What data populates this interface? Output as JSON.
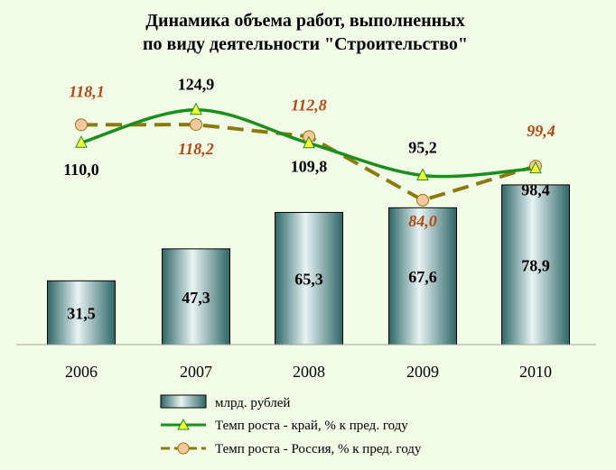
{
  "chart_data": {
    "type": "bar",
    "title_lines": [
      "Динамика объема работ, выполненных",
      "по виду деятельности \"Строительство\""
    ],
    "categories": [
      "2006",
      "2007",
      "2008",
      "2009",
      "2010"
    ],
    "bars": {
      "name": "млрд. рублей",
      "values": [
        31.5,
        47.3,
        65.3,
        67.6,
        78.9
      ],
      "labels": [
        "31,5",
        "47,3",
        "65,3",
        "67,6",
        "78,9"
      ],
      "ylim": [
        0,
        100
      ]
    },
    "series": [
      {
        "name": "Темп роста - край, % к пред. году",
        "values": [
          110.0,
          124.9,
          109.8,
          95.2,
          98.4
        ],
        "labels": [
          "110,0",
          "124,9",
          "109,8",
          "95,2",
          "98,4"
        ],
        "color": "#1a8f1a",
        "marker": "triangle",
        "marker_color": "#ffff33",
        "line_style": "solid-smooth"
      },
      {
        "name": "Темп роста - Россия, % к пред. году",
        "values": [
          118.1,
          118.2,
          112.8,
          84.0,
          99.4
        ],
        "labels": [
          "118,1",
          "118,2",
          "112,8",
          "84,0",
          "99,4"
        ],
        "color": "#8c7a10",
        "marker": "circle",
        "marker_color": "#f9c8a0",
        "label_color": "#b04a12",
        "line_style": "dashed"
      }
    ],
    "line_axis_range": [
      60,
      135
    ],
    "grid": false,
    "legend_position": "bottom"
  },
  "colors": {
    "background": "#f2fde8",
    "bar_dark": "#2d6666",
    "bar_light": "#e8f3f3",
    "title": "#000000"
  }
}
